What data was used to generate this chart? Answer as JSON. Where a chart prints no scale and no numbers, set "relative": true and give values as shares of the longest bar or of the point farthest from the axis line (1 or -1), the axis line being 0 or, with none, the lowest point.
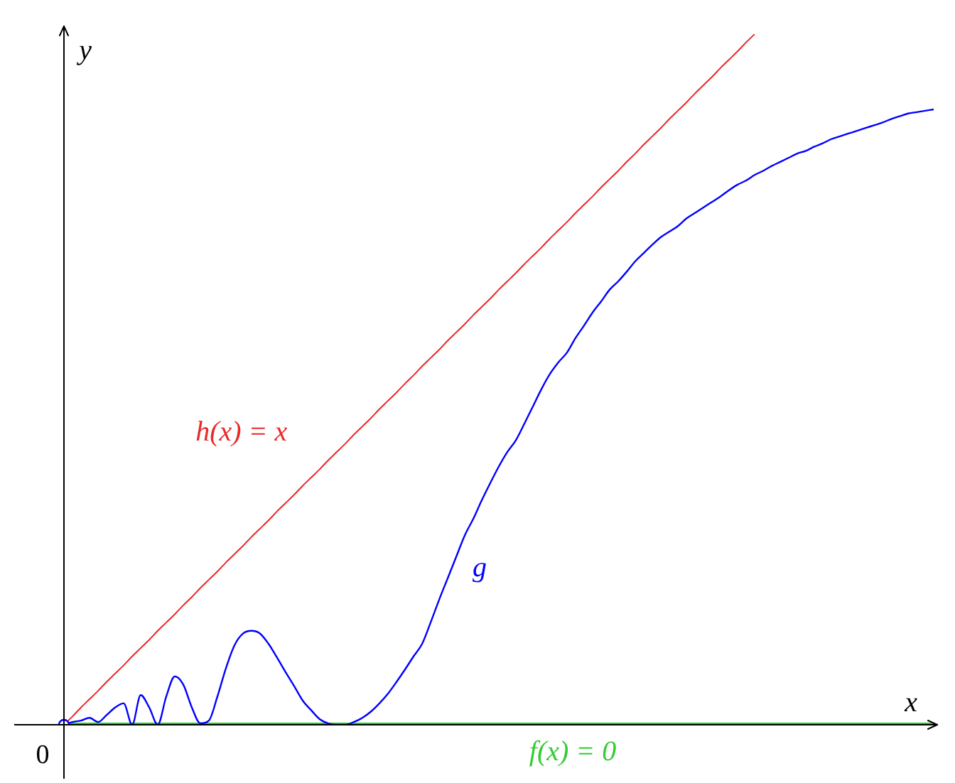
{
  "chart_data": {
    "type": "line",
    "relative": true,
    "xlabel": "x",
    "ylabel": "y",
    "annotations": [
      "0"
    ],
    "categories": [
      null,
      null,
      null,
      null,
      null,
      null,
      null,
      null,
      null,
      null,
      null,
      null,
      null,
      null,
      null,
      null,
      null,
      null,
      null,
      null,
      null,
      null,
      null,
      null,
      null,
      null,
      null,
      null,
      null,
      null,
      null,
      null,
      null,
      null,
      null,
      null,
      null,
      null,
      null,
      null,
      null,
      null,
      null,
      null,
      null,
      null,
      null,
      null,
      null,
      null,
      null,
      null,
      null,
      null,
      null,
      null,
      null,
      null,
      null,
      null,
      null,
      null,
      null,
      null,
      null,
      null,
      null,
      null,
      null,
      null,
      null,
      null,
      null,
      null,
      null,
      null,
      null,
      null,
      null,
      null,
      null,
      null,
      null,
      null,
      null,
      null,
      null,
      null,
      null,
      null,
      null,
      null,
      null,
      null,
      null,
      null,
      null,
      null,
      null,
      null,
      null,
      null,
      null
    ],
    "series": [
      {
        "name": "h(x) = x",
        "color": "#e8282a",
        "values": [
          0,
          0.012,
          0.025,
          0.037,
          0.049,
          0.062,
          0.074,
          0.086,
          0.099,
          0.111,
          0.123,
          0.136,
          0.148,
          0.16,
          0.173,
          0.185,
          0.198,
          0.21,
          0.222,
          0.235,
          0.247,
          0.259,
          0.272,
          0.284,
          0.296,
          0.309,
          0.321,
          0.333,
          0.346,
          0.358,
          0.37,
          0.383,
          0.395,
          0.407,
          0.42,
          0.432,
          0.444,
          0.457,
          0.469,
          0.481,
          0.494,
          0.506,
          0.519,
          0.531,
          0.543,
          0.556,
          0.568,
          0.58,
          0.593,
          0.605,
          0.617,
          0.63,
          0.642,
          0.654,
          0.667,
          0.679,
          0.691,
          0.704,
          0.716,
          0.728,
          0.741,
          0.753,
          0.765,
          0.778,
          0.79,
          0.802,
          0.815,
          0.827,
          0.84,
          0.852,
          0.864,
          0.877,
          0.889,
          0.901,
          0.914,
          0.926,
          0.938,
          0.951,
          0.963,
          0.975,
          0.988,
          1,
          null,
          null,
          null,
          null,
          null,
          null,
          null,
          null,
          null,
          null,
          null,
          null,
          null,
          null,
          null,
          null,
          null,
          null,
          null,
          null,
          null
        ]
      },
      {
        "name": "g",
        "color": "#0000ff",
        "values": [
          0,
          0.004,
          0.006,
          0.01,
          0.004,
          0.014,
          0.025,
          0.031,
          0,
          0.043,
          0.025,
          0,
          0.041,
          0.07,
          0.058,
          0.025,
          0.002,
          0.006,
          0.041,
          0.082,
          0.115,
          0.132,
          0.136,
          0.132,
          0.117,
          0.097,
          0.076,
          0.056,
          0.035,
          0.021,
          0.008,
          0.002,
          0,
          0,
          0.004,
          0.01,
          0.019,
          0.031,
          0.045,
          0.062,
          0.08,
          0.099,
          0.117,
          0.148,
          0.181,
          0.212,
          0.243,
          0.274,
          0.298,
          0.325,
          0.35,
          0.374,
          0.395,
          0.412,
          0.436,
          0.461,
          0.486,
          0.508,
          0.525,
          0.539,
          0.56,
          0.578,
          0.597,
          0.613,
          0.63,
          0.642,
          0.656,
          0.671,
          0.683,
          0.695,
          0.706,
          0.714,
          0.722,
          0.733,
          0.741,
          0.749,
          0.757,
          0.765,
          0.774,
          0.782,
          0.788,
          0.796,
          0.802,
          0.809,
          0.815,
          0.821,
          0.827,
          0.831,
          0.837,
          0.842,
          0.848,
          0.852,
          0.856,
          0.86,
          0.864,
          0.868,
          0.872,
          0.877,
          0.881,
          0.885,
          0.887,
          0.889,
          0.891
        ]
      },
      {
        "name": "f(x) = 0",
        "color": "#33cc33",
        "values": [
          0,
          0,
          0,
          0,
          0,
          0,
          0,
          0,
          0,
          0,
          0,
          0,
          0,
          0,
          0,
          0,
          0,
          0,
          0,
          0,
          0,
          0,
          0,
          0,
          0,
          0,
          0,
          0,
          0,
          0,
          0,
          0,
          0,
          0,
          0,
          0,
          0,
          0,
          0,
          0,
          0,
          0,
          0,
          0,
          0,
          0,
          0,
          0,
          0,
          0,
          0,
          0,
          0,
          0,
          0,
          0,
          0,
          0,
          0,
          0,
          0,
          0,
          0,
          0,
          0,
          0,
          0,
          0,
          0,
          0,
          0,
          0,
          0,
          0,
          0,
          0,
          0,
          0,
          0,
          0,
          0,
          0,
          0,
          0,
          0,
          0,
          0,
          0,
          0,
          0,
          0,
          0,
          0,
          0,
          0,
          0,
          0,
          0,
          0,
          0,
          0,
          0,
          0
        ]
      }
    ]
  }
}
